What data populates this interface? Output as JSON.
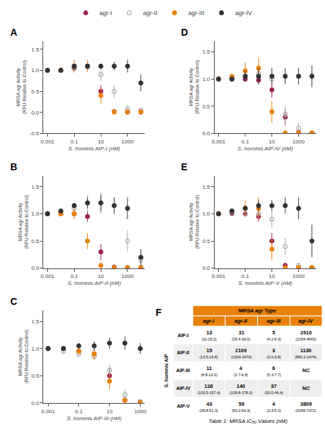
{
  "chart_data": [
    {
      "type": "scatter",
      "title": "A",
      "xlabel": "S. hominis AIP-I (nM)",
      "ylabel": "MRSA agr Activity\n(RFU Relative to Control)",
      "log": "x",
      "xlim": [
        0.0005,
        20000
      ],
      "xticks": [
        0.001,
        0.1,
        10,
        1000
      ],
      "ylim": [
        -0.5,
        1.7
      ],
      "yticks": [
        -0.5,
        {
          "value": 0.0,
          "label": "0.0"
        },
        0.5,
        {
          "value": 1.0,
          "label": "1.0"
        },
        1.5
      ],
      "grid": false,
      "legend": "top",
      "x": [
        0.001,
        0.01,
        0.1,
        1,
        10,
        100,
        1000,
        10000
      ],
      "series": [
        {
          "name": "agr-I",
          "color": "#9B2257",
          "marker": "circle",
          "values": [
            1.0,
            1.0,
            1.05,
            1.1,
            0.5,
            0.02,
            0.01,
            0.01
          ],
          "error": [
            0.0,
            0.02,
            0.05,
            0.08,
            0.15,
            0.02,
            0.01,
            0.01
          ]
        },
        {
          "name": "agr-II",
          "color": "#AAAAAA",
          "marker": "circle-open",
          "values": [
            1.0,
            1.0,
            1.05,
            1.08,
            0.9,
            0.5,
            0.08,
            0.05
          ],
          "error": [
            0.0,
            0.03,
            0.1,
            0.1,
            0.15,
            0.15,
            0.1,
            0.05
          ]
        },
        {
          "name": "agr-III",
          "color": "#E8820C",
          "marker": "circle",
          "values": [
            1.0,
            1.0,
            1.1,
            1.1,
            0.4,
            0.01,
            0.01,
            0.01
          ],
          "error": [
            0.0,
            0.02,
            0.15,
            0.15,
            0.2,
            0.01,
            0.01,
            0.01
          ]
        },
        {
          "name": "agr-IV",
          "color": "#333333",
          "marker": "circle",
          "values": [
            1.0,
            1.0,
            1.1,
            1.1,
            1.1,
            1.1,
            1.1,
            0.7
          ],
          "error": [
            0.0,
            0.02,
            0.05,
            0.05,
            0.05,
            0.1,
            0.15,
            0.2
          ]
        }
      ]
    },
    {
      "type": "scatter",
      "title": "B",
      "xlabel": "S. hominis AIP-II (nM)",
      "ylabel": "MRSA agr Activity\n(RFU Relative to Control)",
      "log": "x",
      "xlim": [
        0.0005,
        20000
      ],
      "xticks": [
        0.001,
        0.1,
        10,
        1000
      ],
      "ylim": [
        0.0,
        1.7
      ],
      "yticks": [
        {
          "value": 0.0,
          "label": "0.0"
        },
        0.5,
        {
          "value": 1.0,
          "label": "1.0"
        },
        1.5
      ],
      "grid": false,
      "legend": "top",
      "x": [
        0.001,
        0.01,
        0.1,
        1,
        10,
        100,
        1000,
        10000
      ],
      "series": [
        {
          "name": "agr-I",
          "color": "#9B2257",
          "marker": "circle",
          "values": [
            1.0,
            1.0,
            1.0,
            0.95,
            0.3,
            0.02,
            0.01,
            0.01
          ],
          "error": [
            0.0,
            0.02,
            0.05,
            0.1,
            0.15,
            0.02,
            0.01,
            0.01
          ]
        },
        {
          "name": "agr-II",
          "color": "#AAAAAA",
          "marker": "circle-open",
          "values": [
            1.0,
            1.05,
            1.1,
            1.2,
            1.2,
            1.15,
            0.5,
            0.15
          ],
          "error": [
            0.0,
            0.05,
            0.1,
            0.15,
            0.2,
            0.15,
            0.2,
            0.1
          ]
        },
        {
          "name": "agr-III",
          "color": "#E8820C",
          "marker": "circle",
          "values": [
            1.0,
            1.0,
            1.0,
            0.5,
            0.05,
            0.01,
            0.01,
            0.01
          ],
          "error": [
            0.0,
            0.02,
            0.1,
            0.15,
            0.05,
            0.01,
            0.01,
            0.01
          ]
        },
        {
          "name": "agr-IV",
          "color": "#333333",
          "marker": "circle",
          "values": [
            1.0,
            1.05,
            1.15,
            1.2,
            1.2,
            1.15,
            1.1,
            0.2
          ],
          "error": [
            0.0,
            0.02,
            0.05,
            0.1,
            0.15,
            0.15,
            0.2,
            0.15
          ]
        }
      ]
    },
    {
      "type": "scatter",
      "title": "C",
      "xlabel": "S. hominis AIP-III (nM)",
      "ylabel": "MRSA agr Activity\n(RFU Relative to Control)",
      "log": "x",
      "xlim": [
        0.0005,
        2000
      ],
      "xticks": [
        0.001,
        0.1,
        10,
        1000
      ],
      "ylim": [
        0.0,
        1.7
      ],
      "yticks": [
        {
          "value": 0.0,
          "label": "0.0"
        },
        0.5,
        {
          "value": 1.0,
          "label": "1.0"
        },
        1.5
      ],
      "grid": false,
      "legend": "top",
      "x": [
        0.001,
        0.01,
        0.1,
        1,
        10,
        100,
        1000
      ],
      "series": [
        {
          "name": "agr-I",
          "color": "#9B2257",
          "marker": "circle",
          "values": [
            1.0,
            1.0,
            0.95,
            0.9,
            0.5,
            0.05,
            0.02
          ],
          "error": [
            0.0,
            0.02,
            0.05,
            0.1,
            0.15,
            0.05,
            0.02
          ]
        },
        {
          "name": "agr-II",
          "color": "#AAAAAA",
          "marker": "circle-open",
          "values": [
            1.0,
            0.95,
            0.9,
            0.85,
            0.6,
            0.15,
            0.02
          ],
          "error": [
            0.0,
            0.05,
            0.05,
            0.05,
            0.1,
            0.1,
            0.02
          ]
        },
        {
          "name": "agr-III",
          "color": "#E8820C",
          "marker": "circle",
          "values": [
            1.0,
            1.0,
            0.95,
            0.9,
            0.4,
            0.05,
            0.01
          ],
          "error": [
            0.0,
            0.02,
            0.05,
            0.1,
            0.15,
            0.05,
            0.01
          ]
        },
        {
          "name": "agr-IV",
          "color": "#333333",
          "marker": "circle",
          "values": [
            1.0,
            1.0,
            1.05,
            1.05,
            1.1,
            1.1,
            1.0
          ],
          "error": [
            0.0,
            0.02,
            0.05,
            0.08,
            0.1,
            0.12,
            0.1
          ]
        }
      ]
    },
    {
      "type": "scatter",
      "title": "D",
      "xlabel": "S. hominis AIP-IV (nM)",
      "ylabel": "MRSA agr Activity\n(RFU Relative to Control)",
      "log": "x",
      "xlim": [
        0.0005,
        20000
      ],
      "xticks": [
        0.001,
        0.1,
        10,
        1000
      ],
      "ylim": [
        0.0,
        1.7
      ],
      "yticks": [
        {
          "value": 0.0,
          "label": "0.0"
        },
        0.5,
        {
          "value": 1.0,
          "label": "1.0"
        },
        1.5
      ],
      "grid": false,
      "legend": "top",
      "x": [
        0.001,
        0.01,
        0.1,
        1,
        10,
        100,
        1000,
        10000
      ],
      "series": [
        {
          "name": "agr-I",
          "color": "#9B2257",
          "marker": "circle",
          "values": [
            1.0,
            1.0,
            1.0,
            0.98,
            0.8,
            0.3,
            0.02,
            0.01
          ],
          "error": [
            0.0,
            0.02,
            0.05,
            0.05,
            0.15,
            0.15,
            0.02,
            0.01
          ]
        },
        {
          "name": "agr-II",
          "color": "#AAAAAA",
          "marker": "circle-open",
          "values": [
            1.0,
            1.0,
            1.05,
            1.1,
            1.0,
            0.35,
            0.1,
            0.01
          ],
          "error": [
            0.0,
            0.02,
            0.05,
            0.1,
            0.1,
            0.15,
            0.1,
            0.01
          ]
        },
        {
          "name": "agr-III",
          "color": "#E8820C",
          "marker": "circle",
          "values": [
            1.0,
            1.05,
            1.15,
            1.2,
            0.4,
            0.01,
            0.01,
            0.01
          ],
          "error": [
            0.0,
            0.02,
            0.15,
            0.2,
            0.2,
            0.01,
            0.01,
            0.01
          ]
        },
        {
          "name": "agr-IV",
          "color": "#333333",
          "marker": "circle",
          "values": [
            1.0,
            1.0,
            1.05,
            1.05,
            1.05,
            1.05,
            1.05,
            1.05
          ],
          "error": [
            0.0,
            0.02,
            0.1,
            0.15,
            0.15,
            0.15,
            0.15,
            0.2
          ]
        }
      ]
    },
    {
      "type": "scatter",
      "title": "E",
      "xlabel": "S. hominis AIP-V (nM)",
      "ylabel": "MRSA agr Activity\n(RFU Relative to Control)",
      "log": "x",
      "xlim": [
        0.0005,
        20000
      ],
      "xticks": [
        0.001,
        0.1,
        10,
        1000
      ],
      "ylim": [
        0.0,
        1.7
      ],
      "yticks": [
        {
          "value": 0.0,
          "label": "0.0"
        },
        0.5,
        {
          "value": 1.0,
          "label": "1.0"
        },
        1.5
      ],
      "grid": false,
      "legend": "top",
      "x": [
        0.001,
        0.01,
        0.1,
        1,
        10,
        100,
        1000,
        10000
      ],
      "series": [
        {
          "name": "agr-I",
          "color": "#9B2257",
          "marker": "circle",
          "values": [
            1.0,
            1.0,
            1.0,
            0.95,
            0.5,
            0.05,
            0.01,
            0.01
          ],
          "error": [
            0.0,
            0.02,
            0.05,
            0.1,
            0.15,
            0.05,
            0.01,
            0.01
          ]
        },
        {
          "name": "agr-II",
          "color": "#AAAAAA",
          "marker": "circle-open",
          "values": [
            1.0,
            1.0,
            1.0,
            1.0,
            0.9,
            0.4,
            0.05,
            0.01
          ],
          "error": [
            0.0,
            0.02,
            0.05,
            0.1,
            0.15,
            0.15,
            0.05,
            0.01
          ]
        },
        {
          "name": "agr-III",
          "color": "#E8820C",
          "marker": "circle",
          "values": [
            1.0,
            1.05,
            1.1,
            1.1,
            0.35,
            0.01,
            0.01,
            0.01
          ],
          "error": [
            0.0,
            0.02,
            0.15,
            0.2,
            0.2,
            0.01,
            0.01,
            0.01
          ]
        },
        {
          "name": "agr-IV",
          "color": "#333333",
          "marker": "circle",
          "values": [
            1.0,
            1.05,
            1.1,
            1.15,
            1.15,
            1.15,
            1.1,
            0.5
          ],
          "error": [
            0.0,
            0.02,
            0.05,
            0.1,
            0.1,
            0.15,
            0.2,
            0.3
          ]
        }
      ]
    },
    {
      "type": "table",
      "title": "F",
      "header": "MRSA agr Type",
      "row_title": "S. hominis AIP",
      "caption": "Table 1: MRSA IC₅₀ Values (nM)",
      "categories": [
        "AIP-I",
        "AIP-II",
        "AIP-III",
        "AIP-IV",
        "AIP-V"
      ],
      "columns": [
        "agr-I",
        "agr-II",
        "agr-III",
        "agr-IV"
      ],
      "cells": [
        [
          "13\n(11-15.2)",
          "31\n(25.4-39.0)",
          "5\n(4.2-6.0)",
          "2910\n(2154-4543)"
        ],
        [
          "15\n(13.5-16.8)",
          "2109\n(1504-3473)",
          "3\n(3.0-3.8)",
          "1130\n(882.2-1474)"
        ],
        [
          "11\n(8.8-13.0)",
          "4\n(2.7-6.8)",
          "6\n(5.3-7.7)",
          "NC"
        ],
        [
          "128\n(103.5-157.4)",
          "140\n(109.8-178.0)",
          "37\n(30.0-46.4)",
          "NC"
        ],
        [
          "43\n(36.8-51.3)",
          "59\n(50.2-69.3)",
          "4\n(3.3-5.0)",
          "3809\n(3199-7372)"
        ]
      ],
      "color": "#E8820C",
      "colors": [
        "#FFFFFF",
        "#EEEEEE",
        "#FFFFFF",
        "#EEEEEE",
        "#FFFFFF"
      ]
    }
  ]
}
